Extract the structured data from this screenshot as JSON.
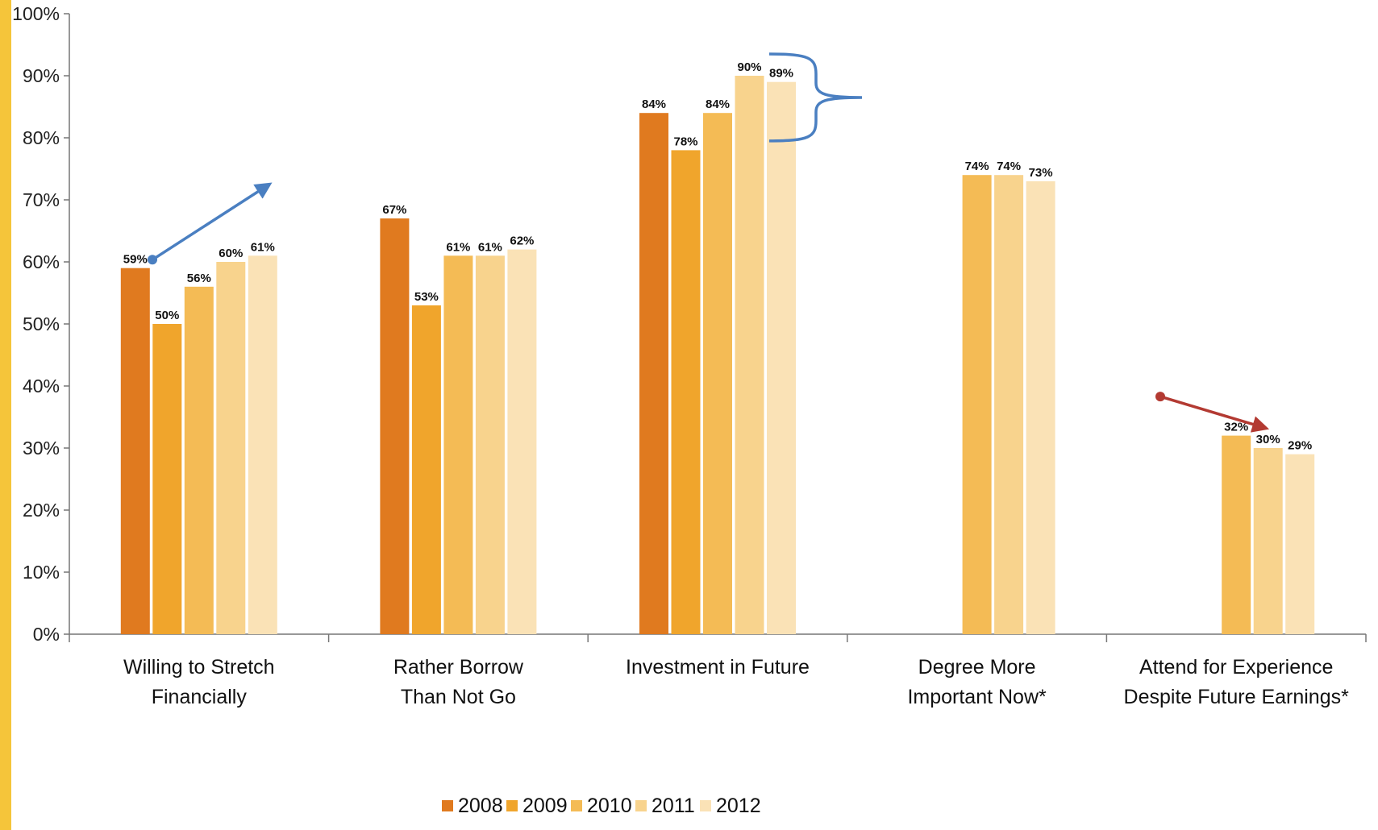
{
  "chart_data": {
    "type": "bar",
    "title": "",
    "xlabel": "",
    "ylabel": "",
    "ylim": [
      0,
      100
    ],
    "y_ticks": [
      "0%",
      "10%",
      "20%",
      "30%",
      "40%",
      "50%",
      "60%",
      "70%",
      "80%",
      "90%",
      "100%"
    ],
    "categories": [
      [
        "Willing to Stretch",
        "Financially"
      ],
      [
        "Rather Borrow",
        "Than Not Go"
      ],
      [
        "Investment in Future"
      ],
      [
        "Degree More",
        "Important Now*"
      ],
      [
        "Attend for Experience",
        "Despite Future Earnings*"
      ]
    ],
    "series": [
      {
        "name": "2008",
        "color": "#e07a1f",
        "values": [
          59,
          67,
          84,
          null,
          null
        ]
      },
      {
        "name": "2009",
        "color": "#f0a52c",
        "values": [
          50,
          53,
          78,
          null,
          null
        ]
      },
      {
        "name": "2010",
        "color": "#f4bb55",
        "values": [
          56,
          61,
          84,
          74,
          32
        ]
      },
      {
        "name": "2011",
        "color": "#f8d38d",
        "values": [
          60,
          61,
          90,
          74,
          30
        ]
      },
      {
        "name": "2012",
        "color": "#fae2b6",
        "values": [
          61,
          62,
          89,
          73,
          29
        ]
      }
    ],
    "data_label_suffix": "%",
    "grid": false,
    "legend_position": "bottom-center",
    "annotations": [
      {
        "type": "arrow-up",
        "color": "#4a7fc1",
        "group": 0
      },
      {
        "type": "brace",
        "color": "#4a7fc1",
        "group": 2
      },
      {
        "type": "arrow-down",
        "color": "#b33a32",
        "group": 4
      }
    ]
  }
}
